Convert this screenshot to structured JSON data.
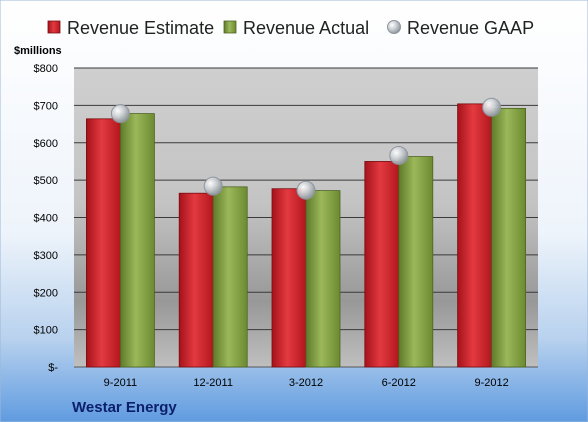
{
  "chart_data": {
    "type": "bar",
    "company": "Westar Energy",
    "unit_label": "$millions",
    "categories": [
      "9-2011",
      "12-2011",
      "3-2012",
      "6-2012",
      "9-2012"
    ],
    "series": [
      {
        "name": "Revenue Estimate",
        "kind": "bar",
        "color": "#d42028",
        "values": [
          664,
          465,
          477,
          550,
          704
        ]
      },
      {
        "name": "Revenue Actual",
        "kind": "bar",
        "color": "#7c9a3b",
        "values": [
          678,
          482,
          472,
          563,
          692
        ]
      },
      {
        "name": "Revenue GAAP",
        "kind": "marker",
        "color": "#b8bfc6",
        "values": [
          678,
          484,
          473,
          566,
          695
        ]
      }
    ],
    "ylim": [
      0,
      800
    ],
    "yticks": [
      0,
      100,
      200,
      300,
      400,
      500,
      600,
      700,
      800
    ],
    "ytick_labels": [
      "$-",
      "$100",
      "$200",
      "$300",
      "$400",
      "$500",
      "$600",
      "$700",
      "$800"
    ],
    "grid": true,
    "legend_position": "top"
  }
}
